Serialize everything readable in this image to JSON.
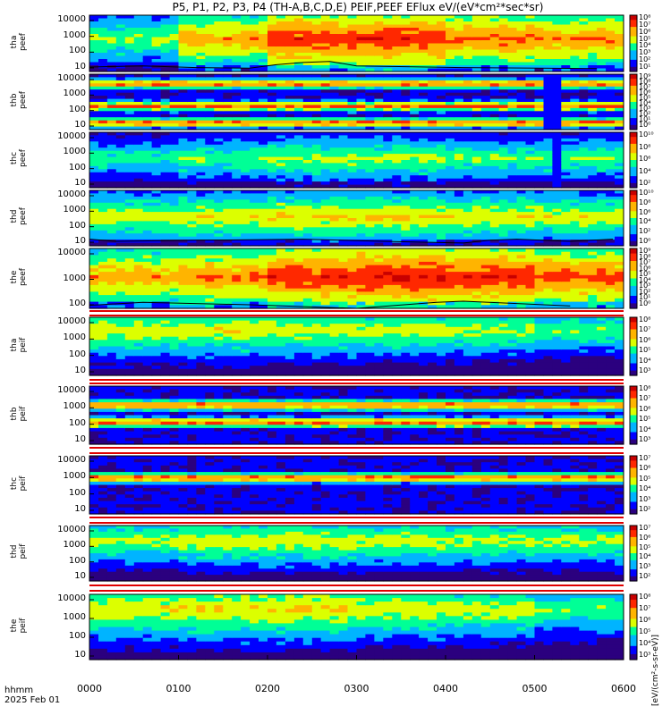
{
  "title": "P5, P1, P2, P3, P4 (TH-A,B,C,D,E) PEIF,PEEF EFlux eV/(eV*cm²*sec*sr)",
  "x_axis": {
    "labels": [
      "0000",
      "0100",
      "0200",
      "0300",
      "0400",
      "0500",
      "0600"
    ],
    "hhmm_label": "hhmm",
    "date_label": "2025 Feb 01"
  },
  "colorbar_unit": "[eV/(cm²-s-sr-eV)]",
  "colors": {
    "scale": [
      "#2b007f",
      "#0000ff",
      "#00b4ff",
      "#00ff96",
      "#dcff00",
      "#ffb400",
      "#ff2800",
      "#c80000"
    ]
  },
  "chart_data": [
    {
      "type": "heatmap",
      "probe": "tha",
      "product": "peef",
      "ylabel": [
        "tha",
        "peef"
      ],
      "yticks": [
        "10000",
        "1000",
        "100",
        "10"
      ],
      "scale": "log",
      "cbar_ticks": [
        "10⁸",
        "10⁷",
        "10⁶",
        "10⁵",
        "10⁴",
        "10³",
        "10²",
        "10¹"
      ],
      "profile": [
        0.55,
        0.75,
        0.9,
        0.9,
        0.82,
        0.78
      ],
      "peak_y": 0.4,
      "overlay_line": [
        [
          0,
          0.92
        ],
        [
          0.1,
          0.9
        ],
        [
          0.2,
          0.93
        ],
        [
          0.3,
          0.94
        ],
        [
          0.35,
          0.88
        ],
        [
          0.4,
          0.84
        ],
        [
          0.45,
          0.82
        ],
        [
          0.5,
          0.9
        ],
        [
          0.7,
          0.93
        ],
        [
          0.95,
          0.95
        ]
      ]
    },
    {
      "type": "heatmap",
      "probe": "thb",
      "product": "peef",
      "ylabel": [
        "thb",
        "peef"
      ],
      "yticks": [
        "10000",
        "1000",
        "100",
        "10"
      ],
      "scale": "log",
      "cbar_ticks": [
        "10⁹",
        "10⁸",
        "10⁷",
        "10⁶",
        "10⁵",
        "10⁴",
        "10³",
        "10²",
        "10¹",
        "10⁰"
      ],
      "bands": [
        0.15,
        0.55,
        0.85
      ],
      "gap_at": 0.858
    },
    {
      "type": "heatmap",
      "probe": "thc",
      "product": "peef",
      "ylabel": [
        "thc",
        "peef"
      ],
      "yticks": [
        "10000",
        "1000",
        "100",
        "10"
      ],
      "scale": "log",
      "cbar_ticks": [
        "10¹⁰",
        "10⁸",
        "10⁶",
        "10⁴",
        "10²"
      ],
      "profile": [
        0.45,
        0.5,
        0.55,
        0.55,
        0.5,
        0.5
      ],
      "peak_y": 0.45,
      "gap_at": 0.87
    },
    {
      "type": "heatmap",
      "probe": "thd",
      "product": "peef",
      "ylabel": [
        "thd",
        "peef"
      ],
      "yticks": [
        "10000",
        "1000",
        "100",
        "10"
      ],
      "scale": "log",
      "cbar_ticks": [
        "10¹⁰",
        "10⁸",
        "10⁶",
        "10⁴",
        "10²",
        "10⁰"
      ],
      "profile": [
        0.6,
        0.62,
        0.65,
        0.65,
        0.62,
        0.6
      ],
      "peak_y": 0.45,
      "overlay_line": [
        [
          0,
          0.88
        ],
        [
          0.05,
          0.92
        ],
        [
          0.2,
          0.9
        ],
        [
          0.4,
          0.88
        ],
        [
          0.55,
          0.92
        ],
        [
          0.7,
          0.95
        ],
        [
          0.75,
          0.9
        ],
        [
          0.8,
          0.88
        ],
        [
          0.9,
          0.92
        ],
        [
          0.98,
          0.88
        ]
      ]
    },
    {
      "type": "heatmap",
      "probe": "the",
      "product": "peef",
      "ylabel": [
        "the",
        "peef"
      ],
      "yticks": [
        "10000",
        "1000",
        "100"
      ],
      "scale": "log",
      "cbar_ticks": [
        "10⁹",
        "10⁸",
        "10⁷",
        "10⁶",
        "10⁵",
        "10⁴",
        "10³",
        "10²",
        "10¹",
        "10⁰"
      ],
      "profile": [
        0.75,
        0.8,
        0.9,
        0.95,
        0.92,
        0.85
      ],
      "peak_y": 0.45,
      "overlay_line": [
        [
          0,
          0.95
        ],
        [
          0.1,
          0.9
        ],
        [
          0.3,
          0.94
        ],
        [
          0.5,
          1
        ],
        [
          0.65,
          0.9
        ],
        [
          0.7,
          0.88
        ],
        [
          0.8,
          0.92
        ],
        [
          0.9,
          0.96
        ]
      ]
    },
    {
      "type": "heatmap",
      "probe": "tha",
      "product": "peif",
      "ylabel": [
        "tha",
        "peif"
      ],
      "yticks": [
        "10000",
        "1000",
        "100",
        "10"
      ],
      "scale": "log",
      "cbar_ticks": [
        "10⁸",
        "10⁷",
        "10⁶",
        "10⁵",
        "10⁴",
        "10³"
      ],
      "profile": [
        0.6,
        0.62,
        0.6,
        0.58,
        0.55,
        0.5
      ],
      "peak_y": 0.2
    },
    {
      "type": "heatmap",
      "probe": "thb",
      "product": "peif",
      "ylabel": [
        "thb",
        "peif"
      ],
      "yticks": [
        "10000",
        "1000",
        "100",
        "10"
      ],
      "scale": "log",
      "cbar_ticks": [
        "10⁸",
        "10⁷",
        "10⁶",
        "10⁵",
        "10⁴",
        "10³"
      ],
      "bands": [
        0.3,
        0.6
      ]
    },
    {
      "type": "heatmap",
      "probe": "thc",
      "product": "peif",
      "ylabel": [
        "thc",
        "peif"
      ],
      "yticks": [
        "10000",
        "1000",
        "100",
        "10"
      ],
      "scale": "log",
      "cbar_ticks": [
        "10⁷",
        "10⁶",
        "10⁵",
        "10⁴",
        "10³",
        "10²"
      ],
      "bands": [
        0.35
      ]
    },
    {
      "type": "heatmap",
      "probe": "thd",
      "product": "peif",
      "ylabel": [
        "thd",
        "peif"
      ],
      "yticks": [
        "10000",
        "1000",
        "100",
        "10"
      ],
      "scale": "log",
      "cbar_ticks": [
        "10⁷",
        "10⁶",
        "10⁵",
        "10⁴",
        "10³",
        "10²"
      ],
      "profile": [
        0.55,
        0.6,
        0.6,
        0.58,
        0.55,
        0.55
      ],
      "peak_y": 0.25
    },
    {
      "type": "heatmap",
      "probe": "the",
      "product": "peif",
      "ylabel": [
        "the",
        "peif"
      ],
      "yticks": [
        "10000",
        "1000",
        "100",
        "10"
      ],
      "scale": "log",
      "cbar_ticks": [
        "10⁸",
        "10⁷",
        "10⁶",
        "10⁵",
        "10⁴",
        "10³"
      ],
      "profile": [
        0.62,
        0.65,
        0.65,
        0.6,
        0.58,
        0.5
      ],
      "peak_y": 0.2
    }
  ]
}
